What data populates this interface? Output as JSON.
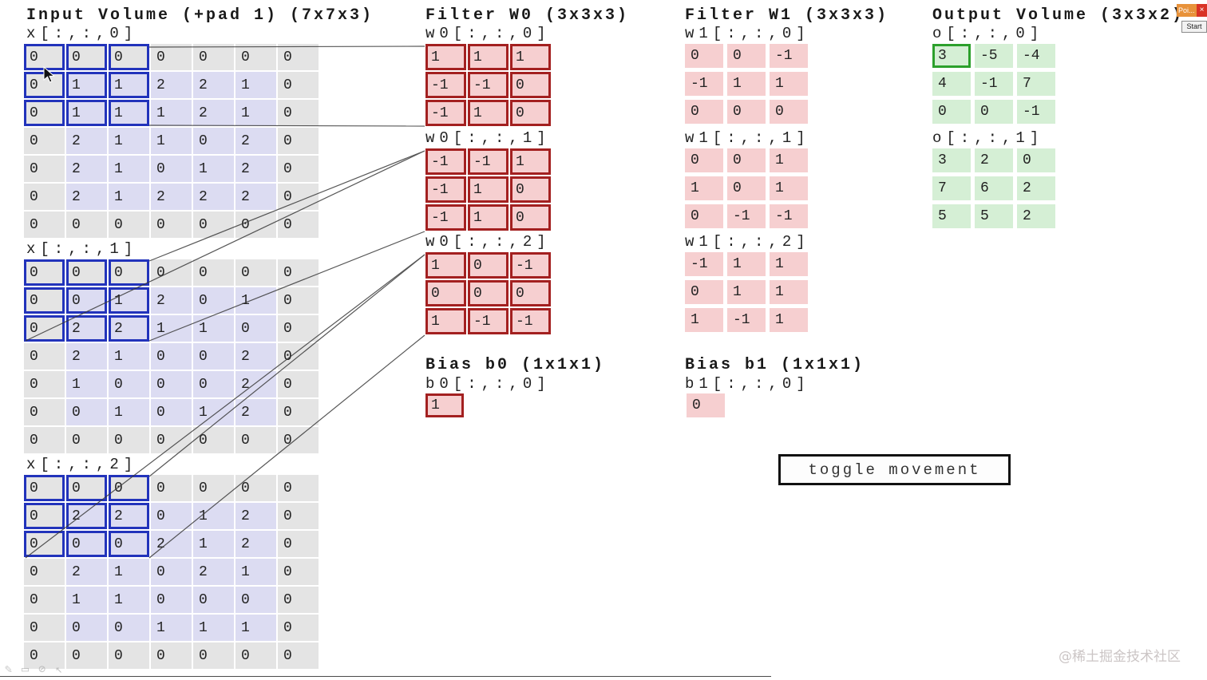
{
  "sections": {
    "input": {
      "title": "Input Volume (+pad 1) (7x7x3)"
    },
    "filter_w0": {
      "title": "Filter W0 (3x3x3)"
    },
    "filter_w1": {
      "title": "Filter W1 (3x3x3)"
    },
    "output": {
      "title": "Output Volume (3x3x2)"
    },
    "bias_b0": {
      "title": "Bias b0 (1x1x1)"
    },
    "bias_b1": {
      "title": "Bias b1 (1x1x1)"
    }
  },
  "matrices": {
    "x0": {
      "label": "x[:,:,0]",
      "padBorder": true,
      "baseClass": "inp",
      "highlight": [
        0,
        0,
        2,
        2
      ],
      "highlightClass": "hl-blue",
      "rows": [
        [
          0,
          0,
          0,
          0,
          0,
          0,
          0
        ],
        [
          0,
          1,
          1,
          2,
          2,
          1,
          0
        ],
        [
          0,
          1,
          1,
          1,
          2,
          1,
          0
        ],
        [
          0,
          2,
          1,
          1,
          0,
          2,
          0
        ],
        [
          0,
          2,
          1,
          0,
          1,
          2,
          0
        ],
        [
          0,
          2,
          1,
          2,
          2,
          2,
          0
        ],
        [
          0,
          0,
          0,
          0,
          0,
          0,
          0
        ]
      ]
    },
    "x1": {
      "label": "x[:,:,1]",
      "padBorder": true,
      "baseClass": "inp",
      "highlight": [
        0,
        0,
        2,
        2
      ],
      "highlightClass": "hl-blue",
      "rows": [
        [
          0,
          0,
          0,
          0,
          0,
          0,
          0
        ],
        [
          0,
          0,
          1,
          2,
          0,
          1,
          0
        ],
        [
          0,
          2,
          2,
          1,
          1,
          0,
          0
        ],
        [
          0,
          2,
          1,
          0,
          0,
          2,
          0
        ],
        [
          0,
          1,
          0,
          0,
          0,
          2,
          0
        ],
        [
          0,
          0,
          1,
          0,
          1,
          2,
          0
        ],
        [
          0,
          0,
          0,
          0,
          0,
          0,
          0
        ]
      ]
    },
    "x2": {
      "label": "x[:,:,2]",
      "padBorder": true,
      "baseClass": "inp",
      "highlight": [
        0,
        0,
        2,
        2
      ],
      "highlightClass": "hl-blue",
      "rows": [
        [
          0,
          0,
          0,
          0,
          0,
          0,
          0
        ],
        [
          0,
          2,
          2,
          0,
          1,
          2,
          0
        ],
        [
          0,
          0,
          0,
          2,
          1,
          2,
          0
        ],
        [
          0,
          2,
          1,
          0,
          2,
          1,
          0
        ],
        [
          0,
          1,
          1,
          0,
          0,
          0,
          0
        ],
        [
          0,
          0,
          0,
          1,
          1,
          1,
          0
        ],
        [
          0,
          0,
          0,
          0,
          0,
          0,
          0
        ]
      ]
    },
    "w0_0": {
      "label": "w0[:,:,0]",
      "baseClass": "fil",
      "highlightAll": true,
      "highlightClass": "hl-red",
      "rows": [
        [
          1,
          1,
          1
        ],
        [
          -1,
          -1,
          0
        ],
        [
          -1,
          1,
          0
        ]
      ]
    },
    "w0_1": {
      "label": "w0[:,:,1]",
      "baseClass": "fil",
      "highlightAll": true,
      "highlightClass": "hl-red",
      "rows": [
        [
          -1,
          -1,
          1
        ],
        [
          -1,
          1,
          0
        ],
        [
          -1,
          1,
          0
        ]
      ]
    },
    "w0_2": {
      "label": "w0[:,:,2]",
      "baseClass": "fil",
      "highlightAll": true,
      "highlightClass": "hl-red",
      "rows": [
        [
          1,
          0,
          -1
        ],
        [
          0,
          0,
          0
        ],
        [
          1,
          -1,
          -1
        ]
      ]
    },
    "w1_0": {
      "label": "w1[:,:,0]",
      "baseClass": "fil",
      "rows": [
        [
          0,
          0,
          -1
        ],
        [
          -1,
          1,
          1
        ],
        [
          0,
          0,
          0
        ]
      ]
    },
    "w1_1": {
      "label": "w1[:,:,1]",
      "baseClass": "fil",
      "rows": [
        [
          0,
          0,
          1
        ],
        [
          1,
          0,
          1
        ],
        [
          0,
          -1,
          -1
        ]
      ]
    },
    "w1_2": {
      "label": "w1[:,:,2]",
      "baseClass": "fil",
      "rows": [
        [
          -1,
          1,
          1
        ],
        [
          0,
          1,
          1
        ],
        [
          1,
          -1,
          1
        ]
      ]
    },
    "o0": {
      "label": "o[:,:,0]",
      "baseClass": "out",
      "highlight": [
        0,
        0,
        0,
        0
      ],
      "highlightClass": "hl-green",
      "rows": [
        [
          3,
          -5,
          -4
        ],
        [
          4,
          -1,
          7
        ],
        [
          0,
          0,
          -1
        ]
      ]
    },
    "o1": {
      "label": "o[:,:,1]",
      "baseClass": "out",
      "rows": [
        [
          3,
          2,
          0
        ],
        [
          7,
          6,
          2
        ],
        [
          5,
          5,
          2
        ]
      ]
    },
    "b0": {
      "label": "b0[:,:,0]",
      "baseClass": "fil",
      "highlightAll": true,
      "highlightClass": "hl-red",
      "rows": [
        [
          1
        ]
      ]
    },
    "b1": {
      "label": "b1[:,:,0]",
      "baseClass": "fil",
      "rows": [
        [
          0
        ]
      ]
    }
  },
  "controls": {
    "toggle_button": "toggle movement"
  },
  "overlay": {
    "mini_window_title": "Poi...",
    "close_label": "×",
    "start_button": "Start"
  },
  "tool_icons": [
    "✎",
    "▭",
    "⊘",
    "↖"
  ],
  "watermark": "@稀土掘金技术社区",
  "colors": {
    "input_cell": "#dcdcf2",
    "pad_cell": "#e4e4e4",
    "filter_cell": "#f6cfd0",
    "output_cell": "#d5efd5",
    "highlight_blue": "#2233bb",
    "highlight_red": "#a32020",
    "highlight_green": "#2ca02c"
  }
}
